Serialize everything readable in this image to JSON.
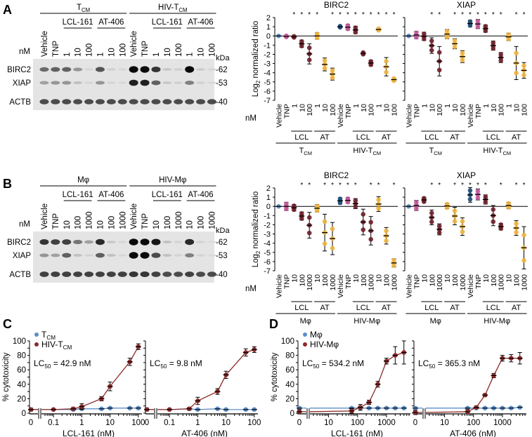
{
  "panels": {
    "A": {
      "letter": "A",
      "blot": {
        "groups": [
          {
            "label": "T",
            "sub": "CM"
          },
          {
            "label": "HIV-T",
            "sub": "CM"
          }
        ],
        "drugs": [
          "LCL-161",
          "AT-406"
        ],
        "lanes": [
          "Vehicle",
          "TNP",
          "1",
          "10",
          "100",
          "1",
          "10",
          "100",
          "Vehicle",
          "TNP",
          "1",
          "10",
          "100",
          "1",
          "10",
          "100"
        ],
        "unit_label": "nM",
        "rows": [
          "BIRC2",
          "XIAP",
          "ACTB"
        ],
        "kda_label": "kDa",
        "markers": [
          "-62",
          "-53",
          "-40"
        ],
        "band_intensity": {
          "BIRC2": [
            0.55,
            0.6,
            0.6,
            0.35,
            0.05,
            0.65,
            0.08,
            0.05,
            1,
            1,
            0.8,
            0.12,
            0.08,
            1,
            0.1,
            0.05
          ],
          "XIAP": [
            0.3,
            0.35,
            0.35,
            0.15,
            0.05,
            0.35,
            0.06,
            0.04,
            0.9,
            0.9,
            0.6,
            0.12,
            0.08,
            0.45,
            0.08,
            0.04
          ],
          "ACTB": [
            0.7,
            0.7,
            0.7,
            0.7,
            0.7,
            0.7,
            0.7,
            0.7,
            0.7,
            0.7,
            0.7,
            0.7,
            0.7,
            0.7,
            0.7,
            0.7
          ]
        }
      }
    },
    "B": {
      "letter": "B",
      "blot": {
        "groups": [
          {
            "label": "Mφ",
            "sub": ""
          },
          {
            "label": "HIV-Mφ",
            "sub": ""
          }
        ],
        "drugs": [
          "LCL-161",
          "AT-406"
        ],
        "lanes": [
          "Vehicle",
          "TNP",
          "10",
          "100",
          "1000",
          "10",
          "100",
          "1000",
          "Vehicle",
          "TNP",
          "10",
          "100",
          "1000",
          "10",
          "100",
          "1000"
        ],
        "unit_label": "nM",
        "rows": [
          "BIRC2",
          "XIAP",
          "ACTB"
        ],
        "kda_label": "kDa",
        "markers": [
          "-62",
          "-53",
          "-40"
        ],
        "band_intensity": {
          "BIRC2": [
            0.8,
            0.75,
            0.75,
            0.5,
            0.3,
            0.85,
            0.12,
            0.05,
            1,
            1,
            0.95,
            0.15,
            0.06,
            0.85,
            0.06,
            0.03
          ],
          "XIAP": [
            0.35,
            0.3,
            0.6,
            0.15,
            0.06,
            0.6,
            0.15,
            0.05,
            1,
            1,
            0.7,
            0.15,
            0.06,
            0.45,
            0.06,
            0.03
          ],
          "ACTB": [
            0.75,
            0.75,
            0.75,
            0.75,
            0.75,
            0.75,
            0.75,
            0.75,
            0.8,
            0.8,
            0.75,
            0.7,
            0.7,
            0.75,
            0.7,
            0.7
          ]
        }
      }
    },
    "C": {
      "letter": "C"
    },
    "D": {
      "letter": "D"
    }
  },
  "chart_data": [
    {
      "id": "A-BIRC2",
      "type": "scatter",
      "title": "BIRC2",
      "ylabel": "Log2 normalized ratio",
      "ylim": [
        -7,
        2
      ],
      "yticks": [
        2,
        1,
        0,
        -1,
        -2,
        -3,
        -4,
        -5,
        -6,
        -7
      ],
      "unit_label": "nM",
      "categories": [
        "Vehicle",
        "TNP",
        "1",
        "10",
        "100",
        "1",
        "10",
        "100",
        "Vehicle",
        "TNP",
        "1",
        "10",
        "100",
        "1",
        "10",
        "100"
      ],
      "category_colors": [
        "#5b8fc9",
        "#c2579a",
        "#6b1f2a",
        "#6b1f2a",
        "#6b1f2a",
        "#f0b43c",
        "#f0b43c",
        "#f0b43c",
        "#1f4e79",
        "#c2579a",
        "#6b1f2a",
        "#6b1f2a",
        "#6b1f2a",
        "#f0b43c",
        "#f0b43c",
        "#f0b43c"
      ],
      "means": [
        0,
        -0.05,
        -0.1,
        -0.85,
        -1.95,
        0,
        -3.1,
        -4.15,
        1.0,
        0.95,
        0.65,
        -1.9,
        -2.95,
        0.7,
        -3.35,
        -4.75
      ],
      "errors": [
        0,
        0.1,
        0.1,
        0.4,
        1.1,
        0.35,
        0.7,
        0.65,
        0.1,
        0.3,
        0.4,
        0.15,
        0.3,
        0.15,
        1.0,
        0.2
      ],
      "significance": [
        "",
        "",
        "*",
        "*",
        "*",
        "*",
        "",
        "*",
        "*",
        "*",
        "*",
        "*",
        "*",
        "*",
        "*",
        "*"
      ],
      "subgroups": [
        {
          "label": "LCL",
          "from": 2,
          "to": 4
        },
        {
          "label": "AT",
          "from": 5,
          "to": 7
        },
        {
          "label": "LCL",
          "from": 10,
          "to": 12
        },
        {
          "label": "AT",
          "from": 13,
          "to": 15
        }
      ],
      "groups": [
        {
          "label": "T",
          "sub": "CM",
          "from": 0,
          "to": 7
        },
        {
          "label": "HIV-T",
          "sub": "CM",
          "from": 8,
          "to": 15
        }
      ]
    },
    {
      "id": "A-XIAP",
      "type": "scatter",
      "title": "XIAP",
      "ylim": [
        -7,
        2
      ],
      "categories": [
        "Vehicle",
        "TNP",
        "1",
        "10",
        "100",
        "1",
        "10",
        "100",
        "Vehicle",
        "TNP",
        "1",
        "10",
        "100",
        "1",
        "10",
        "100"
      ],
      "category_colors": [
        "#5b8fc9",
        "#c2579a",
        "#6b1f2a",
        "#6b1f2a",
        "#6b1f2a",
        "#f0b43c",
        "#f0b43c",
        "#f0b43c",
        "#1f4e79",
        "#c2579a",
        "#6b1f2a",
        "#6b1f2a",
        "#6b1f2a",
        "#f0b43c",
        "#f0b43c",
        "#f0b43c"
      ],
      "means": [
        0,
        0.1,
        -0.05,
        -1.05,
        -2.75,
        0.2,
        -0.85,
        -2.25,
        1.35,
        1.3,
        0.8,
        -1.05,
        -2.35,
        -0.1,
        -2.95,
        -3.75
      ],
      "errors": [
        0,
        0.4,
        0.45,
        0.85,
        1.6,
        0.5,
        0.55,
        0.65,
        0.35,
        0.5,
        0.4,
        0.5,
        0.55,
        0.4,
        1.8,
        0.85
      ],
      "significance": [
        "",
        "",
        "",
        "*",
        "*",
        "",
        "*",
        "*",
        "*",
        "*",
        "*",
        "*",
        "*",
        "",
        "*",
        "*"
      ],
      "subgroups": [
        {
          "label": "LCL",
          "from": 2,
          "to": 4
        },
        {
          "label": "AT",
          "from": 5,
          "to": 7
        },
        {
          "label": "LCL",
          "from": 10,
          "to": 12
        },
        {
          "label": "AT",
          "from": 13,
          "to": 15
        }
      ],
      "groups": [
        {
          "label": "T",
          "sub": "CM",
          "from": 0,
          "to": 7
        },
        {
          "label": "HIV-T",
          "sub": "CM",
          "from": 8,
          "to": 15
        }
      ]
    },
    {
      "id": "B-BIRC2",
      "type": "scatter",
      "title": "BIRC2",
      "ylabel": "Log2 normalized ratio",
      "ylim": [
        -7,
        2
      ],
      "yticks": [
        2,
        1,
        0,
        -1,
        -2,
        -3,
        -4,
        -5,
        -6,
        -7
      ],
      "unit_label": "nM",
      "categories": [
        "Vehicle",
        "TNP",
        "10",
        "100",
        "1000",
        "10",
        "100",
        "1000",
        "Vehicle",
        "TNP",
        "10",
        "100",
        "1000",
        "10",
        "100",
        "1000"
      ],
      "category_colors": [
        "#5b8fc9",
        "#c2579a",
        "#6b1f2a",
        "#6b1f2a",
        "#6b1f2a",
        "#f0b43c",
        "#f0b43c",
        "#f0b43c",
        "#1f4e79",
        "#c2579a",
        "#6b1f2a",
        "#6b1f2a",
        "#6b1f2a",
        "#f0b43c",
        "#f0b43c",
        "#f0b43c"
      ],
      "means": [
        0,
        0,
        -0.15,
        -1.05,
        -2.05,
        -0.2,
        -2.85,
        -3.5,
        0.6,
        0.65,
        0.3,
        -1.7,
        -2.65,
        0.25,
        -3.2,
        -6.15
      ],
      "errors": [
        0,
        0.45,
        0.35,
        0.45,
        1.4,
        0.4,
        2.0,
        1.75,
        0.35,
        0.3,
        0.55,
        1.4,
        1.55,
        0.8,
        0.9,
        0.45
      ],
      "significance": [
        "",
        "",
        "",
        "*",
        "*",
        "",
        "*",
        "*",
        "*",
        "*",
        "*",
        "",
        "*",
        "*",
        "",
        "*"
      ],
      "subgroups": [
        {
          "label": "LCL",
          "from": 2,
          "to": 4
        },
        {
          "label": "AT",
          "from": 5,
          "to": 7
        },
        {
          "label": "LCL",
          "from": 10,
          "to": 12
        },
        {
          "label": "AT",
          "from": 13,
          "to": 15
        }
      ],
      "groups": [
        {
          "label": "Mφ",
          "sub": "",
          "from": 0,
          "to": 7
        },
        {
          "label": "HIV-Mφ",
          "sub": "",
          "from": 8,
          "to": 15
        }
      ]
    },
    {
      "id": "B-XIAP",
      "type": "scatter",
      "title": "XIAP",
      "ylim": [
        -7,
        2
      ],
      "categories": [
        "Vehicle",
        "TNP",
        "10",
        "100",
        "1000",
        "10",
        "100",
        "1000",
        "Vehicle",
        "TNP",
        "10",
        "100",
        "1000",
        "10",
        "100",
        "1000"
      ],
      "category_colors": [
        "#5b8fc9",
        "#c2579a",
        "#6b1f2a",
        "#6b1f2a",
        "#6b1f2a",
        "#f0b43c",
        "#f0b43c",
        "#f0b43c",
        "#1f4e79",
        "#c2579a",
        "#6b1f2a",
        "#6b1f2a",
        "#6b1f2a",
        "#f0b43c",
        "#f0b43c",
        "#f0b43c"
      ],
      "means": [
        0,
        0.1,
        0.7,
        -1.2,
        -2.5,
        0.05,
        -1.05,
        -2.2,
        1.25,
        1.3,
        0.75,
        -1.0,
        -2.2,
        0.1,
        -2.35,
        -4.5
      ],
      "errors": [
        0,
        0.55,
        0.3,
        0.8,
        0.6,
        0.3,
        0.95,
        0.95,
        0.8,
        0.6,
        0.5,
        1.1,
        0.35,
        0.35,
        0.8,
        2.3
      ],
      "significance": [
        "",
        "",
        "",
        "*",
        "*",
        "",
        "*",
        "*",
        "*",
        "*",
        "*",
        "",
        "*",
        "",
        "*",
        "*"
      ],
      "subgroups": [
        {
          "label": "LCL",
          "from": 2,
          "to": 4
        },
        {
          "label": "AT",
          "from": 5,
          "to": 7
        },
        {
          "label": "LCL",
          "from": 10,
          "to": 12
        },
        {
          "label": "AT",
          "from": 13,
          "to": 15
        }
      ],
      "groups": [
        {
          "label": "Mφ",
          "sub": "",
          "from": 0,
          "to": 7
        },
        {
          "label": "HIV-Mφ",
          "sub": "",
          "from": 8,
          "to": 15
        }
      ]
    },
    {
      "id": "C-LCL",
      "type": "line",
      "ylabel": "% cytotoxicity",
      "xlabel": "LCL-161 (nM)",
      "ylim": [
        0,
        100
      ],
      "yticks": [
        0,
        20,
        40,
        60,
        80,
        100
      ],
      "xscale": "log",
      "xlim": [
        0.05,
        120
      ],
      "xticks": [
        0.1,
        1,
        10,
        100
      ],
      "xtick_labels": [
        "0.1",
        "1",
        "10",
        "100"
      ],
      "zero_label": "0",
      "annotation": {
        "prefix": "LC",
        "sub": "50",
        "text": " = 42.9 nM"
      },
      "legend": [
        {
          "label": "T",
          "sub": "CM",
          "color": "#5b8fc9"
        },
        {
          "label": "HIV-T",
          "sub": "CM",
          "color": "#8c2a2a"
        }
      ],
      "legend_position": "top-left",
      "series": [
        {
          "name": "TCM",
          "color": "#5b8fc9",
          "x": [
            0,
            0.1,
            0.5,
            1,
            5,
            10,
            50,
            100
          ],
          "y": [
            5,
            5,
            5,
            6,
            6,
            7,
            7,
            7
          ]
        },
        {
          "name": "HIV-TCM",
          "color": "#8c2a2a",
          "x": [
            0,
            0.1,
            0.5,
            1,
            5,
            10,
            50,
            100
          ],
          "y": [
            5,
            5,
            6,
            9,
            20,
            37,
            71,
            92
          ],
          "err": [
            2,
            1,
            2,
            4,
            3,
            6,
            5,
            4
          ]
        }
      ]
    },
    {
      "id": "C-AT",
      "type": "line",
      "xlabel": "AT-406 (nM)",
      "ylim": [
        0,
        100
      ],
      "xscale": "log",
      "xlim": [
        0.05,
        120
      ],
      "xticks": [
        0.1,
        1,
        10,
        100
      ],
      "xtick_labels": [
        "0.1",
        "1",
        "10",
        "100"
      ],
      "zero_label": "0",
      "annotation": {
        "prefix": "LC",
        "sub": "50",
        "text": " = 9.8 nM"
      },
      "series": [
        {
          "name": "TCM",
          "color": "#5b8fc9",
          "x": [
            0,
            0.1,
            0.5,
            1,
            5,
            10,
            50,
            100
          ],
          "y": [
            5,
            5,
            6,
            5,
            6,
            5,
            5,
            5
          ]
        },
        {
          "name": "HIV-TCM",
          "color": "#8c2a2a",
          "x": [
            0,
            0.1,
            0.5,
            1,
            5,
            10,
            50,
            100
          ],
          "y": [
            5,
            5,
            6,
            17,
            30,
            53,
            84,
            88
          ],
          "err": [
            2,
            1,
            2,
            5,
            4,
            5,
            5,
            4
          ]
        }
      ]
    },
    {
      "id": "D-LCL",
      "type": "line",
      "ylabel": "% cytotoxicity",
      "xlabel": "LCL-161 (nM)",
      "ylim": [
        0,
        100
      ],
      "yticks": [
        0,
        20,
        40,
        60,
        80,
        100
      ],
      "xscale": "log",
      "xlim": [
        3,
        6000
      ],
      "xticks": [
        10,
        100,
        1000
      ],
      "xtick_labels": [
        "10",
        "100",
        "1000"
      ],
      "zero_label": "0",
      "annotation": {
        "prefix": "LC",
        "sub": "50",
        "text": " = 534.2 nM"
      },
      "legend": [
        {
          "label": "Mφ",
          "sub": "",
          "color": "#5b8fc9"
        },
        {
          "label": "HIV-Mφ",
          "sub": "",
          "color": "#8c2a2a"
        }
      ],
      "legend_position": "top-left",
      "series": [
        {
          "name": "Mφ",
          "color": "#5b8fc9",
          "x": [
            0,
            62.5,
            125,
            250,
            500,
            1000,
            2000,
            4000
          ],
          "y": [
            7,
            7,
            7,
            7,
            7,
            7,
            7,
            7
          ]
        },
        {
          "name": "HIV-Mφ",
          "color": "#8c2a2a",
          "x": [
            0,
            62.5,
            125,
            250,
            500,
            1000,
            2000,
            4000
          ],
          "y": [
            2,
            3,
            8,
            15,
            40,
            72,
            80,
            84
          ],
          "err": [
            3,
            3,
            4,
            3,
            4,
            4,
            12,
            16
          ]
        }
      ]
    },
    {
      "id": "D-AT",
      "type": "line",
      "xlabel": "AT-406 (nM)",
      "ylim": [
        0,
        100
      ],
      "xscale": "log",
      "xlim": [
        3,
        6000
      ],
      "xticks": [
        10,
        100,
        1000
      ],
      "xtick_labels": [
        "10",
        "100",
        "1000"
      ],
      "zero_label": "0",
      "annotation": {
        "prefix": "LC",
        "sub": "50",
        "text": " = 365.3 nM"
      },
      "series": [
        {
          "name": "Mφ",
          "color": "#5b8fc9",
          "x": [
            0,
            62.5,
            125,
            250,
            500,
            1000,
            2000,
            4000
          ],
          "y": [
            7,
            7,
            7,
            7,
            7,
            7,
            7,
            8
          ]
        },
        {
          "name": "HIV-Mφ",
          "color": "#8c2a2a",
          "x": [
            0,
            62.5,
            125,
            250,
            500,
            1000,
            2000,
            4000
          ],
          "y": [
            1,
            2,
            8,
            25,
            52,
            76,
            76,
            76
          ],
          "err": [
            3,
            3,
            2,
            2,
            3,
            4,
            5,
            8
          ]
        }
      ]
    }
  ]
}
